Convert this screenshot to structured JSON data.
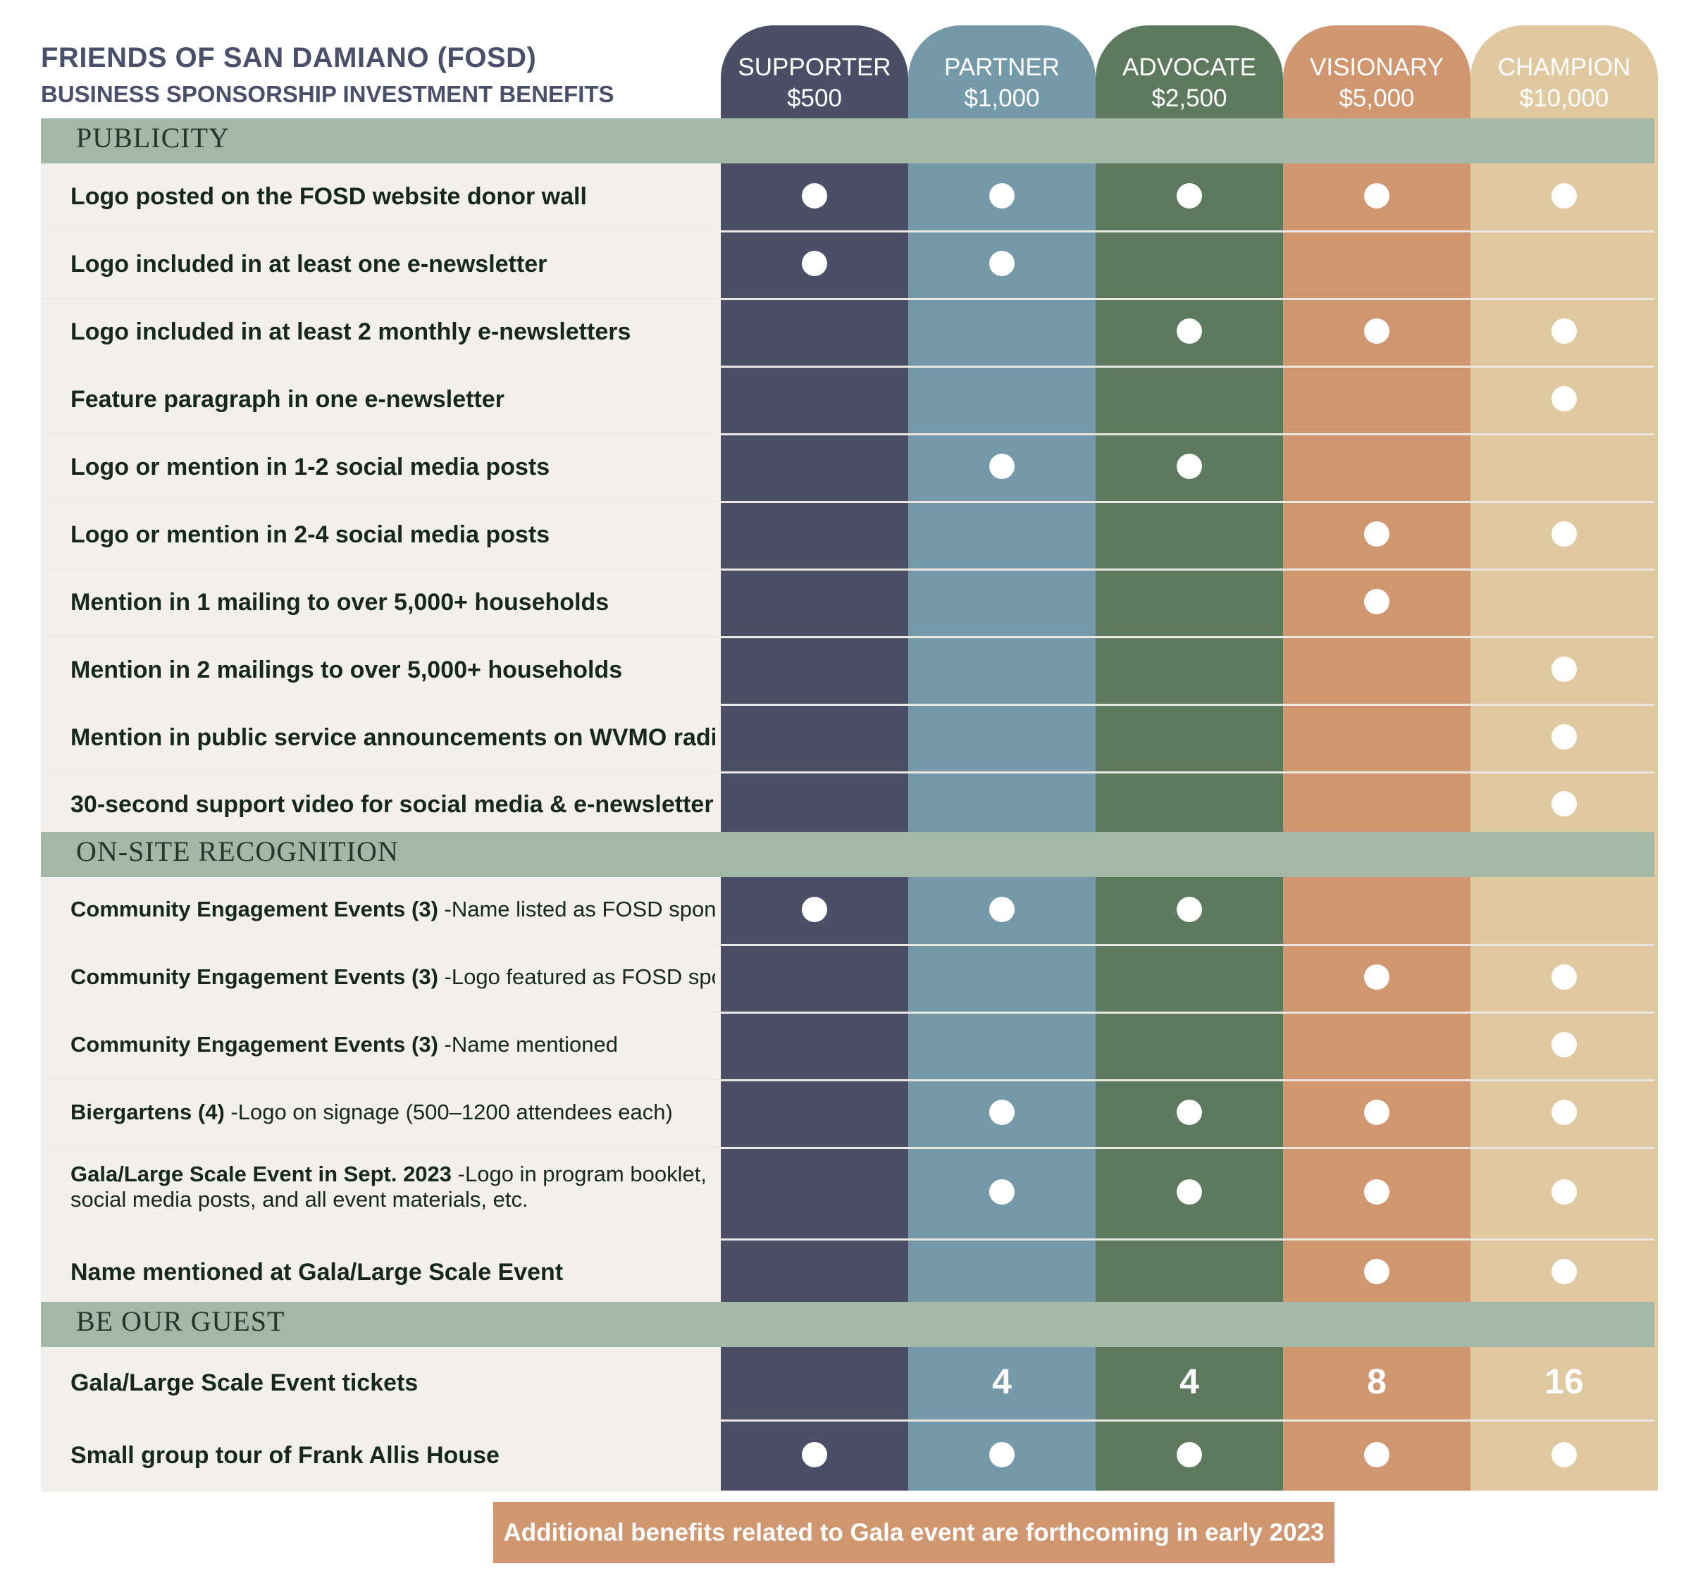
{
  "header": {
    "title": "FRIENDS OF SAN DAMIANO (FOSD)",
    "subtitle": "BUSINESS SPONSORSHIP INVESTMENT BENEFITS"
  },
  "tiers": [
    {
      "name": "SUPPORTER",
      "price": "$500",
      "color": "#4a4f67"
    },
    {
      "name": "PARTNER",
      "price": "$1,000",
      "color": "#749aaa"
    },
    {
      "name": "ADVOCATE",
      "price": "$2,500",
      "color": "#5e7a5e"
    },
    {
      "name": "VISIONARY",
      "price": "$5,000",
      "color": "#cf9670"
    },
    {
      "name": "CHAMPION",
      "price": "$10,000",
      "color": "#e0c8a0"
    }
  ],
  "sections": [
    {
      "title": "PUBLICITY",
      "rows": [
        {
          "bold": "Logo posted on the FOSD website donor wall",
          "normal": "",
          "marks": [
            true,
            true,
            true,
            true,
            true
          ]
        },
        {
          "bold": "Logo included in at least one e-newsletter",
          "normal": "",
          "marks": [
            true,
            true,
            false,
            false,
            false
          ]
        },
        {
          "bold": "Logo included in at least 2 monthly e-newsletters",
          "normal": "",
          "marks": [
            false,
            false,
            true,
            true,
            true
          ]
        },
        {
          "bold": "Feature paragraph in one e-newsletter",
          "normal": "",
          "marks": [
            false,
            false,
            false,
            false,
            true
          ]
        },
        {
          "bold": "Logo or mention in 1-2 social media posts",
          "normal": "",
          "marks": [
            false,
            true,
            true,
            false,
            false
          ]
        },
        {
          "bold": "Logo or mention in 2-4 social media posts",
          "normal": "",
          "marks": [
            false,
            false,
            false,
            true,
            true
          ]
        },
        {
          "bold": "Mention in 1 mailing to over 5,000+ households",
          "normal": "",
          "marks": [
            false,
            false,
            false,
            true,
            false
          ]
        },
        {
          "bold": "Mention in 2 mailings to over 5,000+ households",
          "normal": "",
          "marks": [
            false,
            false,
            false,
            false,
            true
          ]
        },
        {
          "bold": "Mention in public service announcements on WVMO radio",
          "normal": "",
          "marks": [
            false,
            false,
            false,
            false,
            true
          ]
        },
        {
          "bold": "30-second support video for social media & e-newsletter",
          "normal": "",
          "marks": [
            false,
            false,
            false,
            false,
            true
          ]
        }
      ]
    },
    {
      "title": "ON-SITE RECOGNITION",
      "rows": [
        {
          "bold": "Community Engagement Events (3)",
          "normal": " -Name listed as FOSD sponsor",
          "marks": [
            true,
            true,
            true,
            false,
            false
          ]
        },
        {
          "bold": "Community Engagement Events (3)",
          "normal": " -Logo featured as FOSD sponsor",
          "marks": [
            false,
            false,
            false,
            true,
            true
          ]
        },
        {
          "bold": "Community Engagement Events (3)",
          "normal": " -Name mentioned",
          "marks": [
            false,
            false,
            false,
            false,
            true
          ]
        },
        {
          "bold": "Biergartens (4)",
          "normal": " -Logo on signage (500–1200 attendees each)",
          "marks": [
            false,
            true,
            true,
            true,
            true
          ]
        },
        {
          "bold": "Gala/Large Scale Event in Sept. 2023",
          "normal": " -Logo in program booklet, social media posts, and all event materials, etc.",
          "marks": [
            false,
            true,
            true,
            true,
            true
          ]
        },
        {
          "bold": "Name mentioned at Gala/Large Scale Event",
          "normal": "",
          "marks": [
            false,
            false,
            false,
            true,
            true
          ]
        }
      ]
    },
    {
      "title": "BE OUR GUEST",
      "rows": [
        {
          "bold": "Gala/Large Scale Event tickets",
          "normal": "",
          "marks": [
            false,
            "4",
            "4",
            "8",
            "16"
          ]
        },
        {
          "bold": "Small group tour of Frank Allis House",
          "normal": "",
          "marks": [
            true,
            true,
            true,
            true,
            true
          ]
        }
      ]
    }
  ],
  "footer": "Additional benefits related to Gala event are forthcoming in early 2023"
}
